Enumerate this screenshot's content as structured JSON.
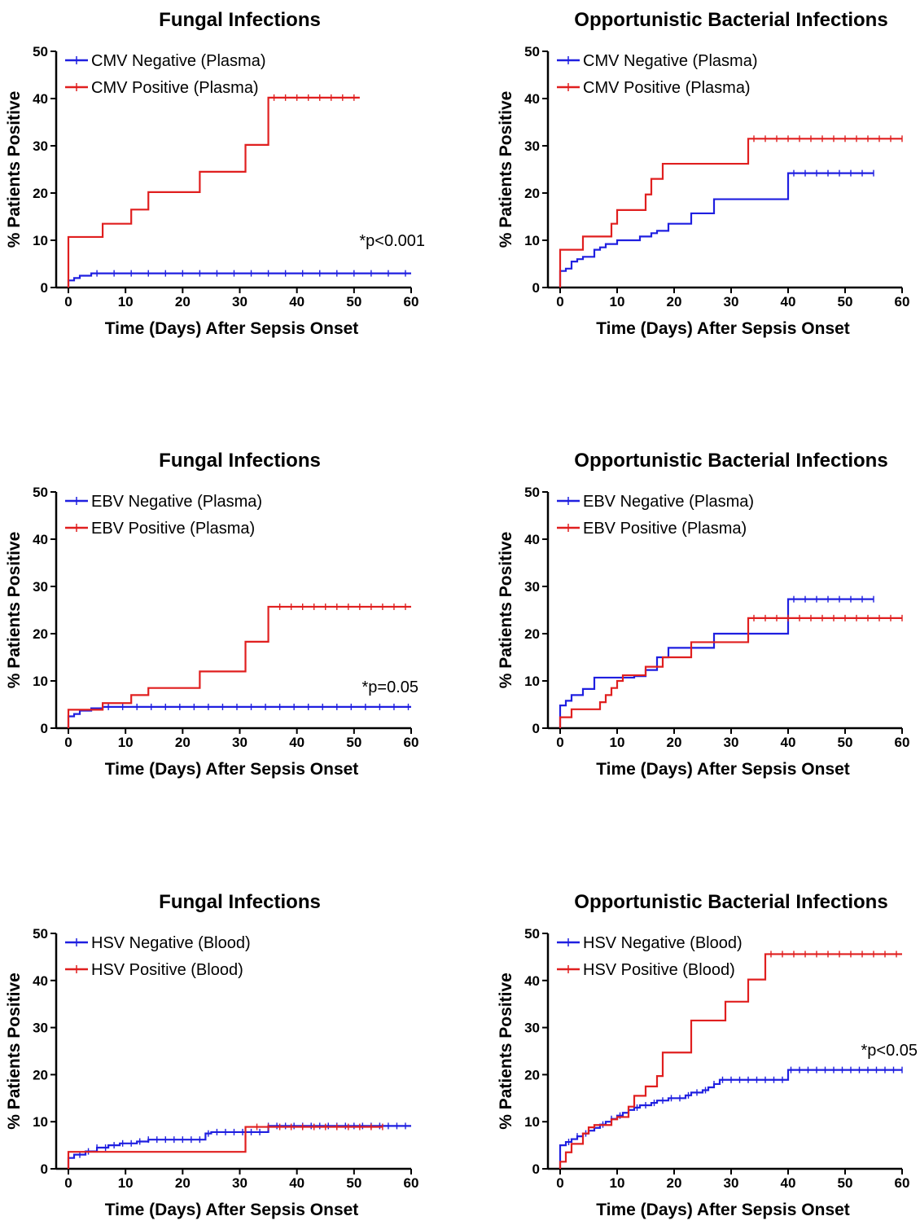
{
  "chart_data": [
    {
      "type": "line",
      "title": "Fungal Infections",
      "xlabel": "Time (Days) After Sepsis Onset",
      "ylabel": "% Patients Positive",
      "xlim": [
        0,
        60
      ],
      "ylim": [
        0,
        50
      ],
      "xticks": [
        0,
        10,
        20,
        30,
        40,
        50,
        60
      ],
      "yticks": [
        0,
        10,
        20,
        30,
        40,
        50
      ],
      "legend_position": "top-left",
      "annotation": "*p<0.001",
      "series": [
        {
          "name": "CMV Negative (Plasma)",
          "color": "#1f1fe0",
          "steps": [
            [
              0,
              1.5
            ],
            [
              1,
              2
            ],
            [
              2,
              2.5
            ],
            [
              4,
              3
            ],
            [
              60,
              3
            ]
          ],
          "censor_start": 5,
          "censor_end": 60,
          "censor_every": 3
        },
        {
          "name": "CMV Positive (Plasma)",
          "color": "#e01f1f",
          "steps": [
            [
              0,
              10.7
            ],
            [
              6,
              13.5
            ],
            [
              11,
              16.5
            ],
            [
              14,
              20.2
            ],
            [
              23,
              24.5
            ],
            [
              31,
              30.2
            ],
            [
              35,
              40.2
            ],
            [
              51,
              40.2
            ]
          ],
          "censor_start": 36,
          "censor_end": 51,
          "censor_every": 2
        }
      ]
    },
    {
      "type": "line",
      "title": "Opportunistic Bacterial Infections",
      "xlabel": "Time (Days) After Sepsis Onset",
      "ylabel": "% Patients Positive",
      "xlim": [
        0,
        60
      ],
      "ylim": [
        0,
        50
      ],
      "xticks": [
        0,
        10,
        20,
        30,
        40,
        50,
        60
      ],
      "yticks": [
        0,
        10,
        20,
        30,
        40,
        50
      ],
      "legend_position": "top-left",
      "series": [
        {
          "name": "CMV Negative (Plasma)",
          "color": "#1f1fe0",
          "steps": [
            [
              0,
              3.5
            ],
            [
              1,
              4
            ],
            [
              2,
              5.5
            ],
            [
              3,
              6
            ],
            [
              4,
              6.5
            ],
            [
              6,
              8
            ],
            [
              7,
              8.5
            ],
            [
              8,
              9.2
            ],
            [
              10,
              10
            ],
            [
              14,
              10.8
            ],
            [
              16,
              11.5
            ],
            [
              17,
              12
            ],
            [
              19,
              13.5
            ],
            [
              23,
              15.7
            ],
            [
              27,
              18.7
            ],
            [
              40,
              24.2
            ],
            [
              55,
              24.2
            ]
          ],
          "censor_start": 41,
          "censor_end": 55,
          "censor_every": 2
        },
        {
          "name": "CMV Positive (Plasma)",
          "color": "#e01f1f",
          "steps": [
            [
              0,
              8
            ],
            [
              4,
              10.8
            ],
            [
              9,
              13.5
            ],
            [
              10,
              16.4
            ],
            [
              15,
              19.7
            ],
            [
              16,
              23
            ],
            [
              18,
              26.2
            ],
            [
              33,
              31.5
            ],
            [
              60,
              31.5
            ]
          ],
          "censor_start": 34,
          "censor_end": 60,
          "censor_every": 2
        }
      ]
    },
    {
      "type": "line",
      "title": "Fungal Infections",
      "xlabel": "Time (Days) After Sepsis Onset",
      "ylabel": "% Patients Positive",
      "xlim": [
        0,
        60
      ],
      "ylim": [
        0,
        50
      ],
      "xticks": [
        0,
        10,
        20,
        30,
        40,
        50,
        60
      ],
      "yticks": [
        0,
        10,
        20,
        30,
        40,
        50
      ],
      "legend_position": "top-left",
      "annotation": "*p=0.05",
      "series": [
        {
          "name": "EBV Negative (Plasma)",
          "color": "#1f1fe0",
          "steps": [
            [
              0,
              2.5
            ],
            [
              1,
              3
            ],
            [
              2,
              3.7
            ],
            [
              4,
              4.2
            ],
            [
              6,
              4.5
            ],
            [
              60,
              4.5
            ]
          ],
          "censor_start": 7,
          "censor_end": 60,
          "censor_every": 2.5
        },
        {
          "name": "EBV Positive (Plasma)",
          "color": "#e01f1f",
          "steps": [
            [
              0,
              3.9
            ],
            [
              6,
              5.3
            ],
            [
              11,
              7
            ],
            [
              14,
              8.5
            ],
            [
              23,
              12
            ],
            [
              31,
              18.3
            ],
            [
              35,
              25.7
            ],
            [
              60,
              25.7
            ]
          ],
          "censor_start": 37,
          "censor_end": 60,
          "censor_every": 2
        }
      ]
    },
    {
      "type": "line",
      "title": "Opportunistic Bacterial Infections",
      "xlabel": "Time (Days) After Sepsis Onset",
      "ylabel": "% Patients Positive",
      "xlim": [
        0,
        60
      ],
      "ylim": [
        0,
        50
      ],
      "xticks": [
        0,
        10,
        20,
        30,
        40,
        50,
        60
      ],
      "yticks": [
        0,
        10,
        20,
        30,
        40,
        50
      ],
      "legend_position": "top-left",
      "series": [
        {
          "name": "EBV Negative (Plasma)",
          "color": "#1f1fe0",
          "steps": [
            [
              0,
              4.8
            ],
            [
              1,
              5.8
            ],
            [
              2,
              7
            ],
            [
              4,
              8.3
            ],
            [
              6,
              10.7
            ],
            [
              13,
              11
            ],
            [
              15,
              12.3
            ],
            [
              17,
              15
            ],
            [
              19,
              17
            ],
            [
              27,
              20
            ],
            [
              40,
              27.3
            ],
            [
              55,
              27.3
            ]
          ],
          "censor_start": 41,
          "censor_end": 55,
          "censor_every": 2
        },
        {
          "name": "EBV Positive (Plasma)",
          "color": "#e01f1f",
          "steps": [
            [
              0,
              2.3
            ],
            [
              2,
              4
            ],
            [
              7,
              5.5
            ],
            [
              8,
              7
            ],
            [
              9,
              8.5
            ],
            [
              10,
              10
            ],
            [
              11,
              11.2
            ],
            [
              15,
              13
            ],
            [
              18,
              15
            ],
            [
              23,
              18.2
            ],
            [
              33,
              23.3
            ],
            [
              60,
              23.3
            ]
          ],
          "censor_start": 34,
          "censor_end": 60,
          "censor_every": 2
        }
      ]
    },
    {
      "type": "line",
      "title": "Fungal Infections",
      "xlabel": "Time (Days) After Sepsis Onset",
      "ylabel": "% Patients Positive",
      "xlim": [
        0,
        60
      ],
      "ylim": [
        0,
        50
      ],
      "xticks": [
        0,
        10,
        20,
        30,
        40,
        50,
        60
      ],
      "yticks": [
        0,
        10,
        20,
        30,
        40,
        50
      ],
      "legend_position": "top-left",
      "series": [
        {
          "name": "HSV Negative (Blood)",
          "color": "#1f1fe0",
          "steps": [
            [
              0,
              2.3
            ],
            [
              1,
              3
            ],
            [
              3,
              3.7
            ],
            [
              5,
              4.5
            ],
            [
              7,
              5
            ],
            [
              9,
              5.4
            ],
            [
              12,
              5.8
            ],
            [
              14,
              6.2
            ],
            [
              24,
              7.5
            ],
            [
              25,
              7.8
            ],
            [
              35,
              9.1
            ],
            [
              60,
              9.1
            ]
          ],
          "censor_start": 2,
          "censor_end": 60,
          "censor_every": 1.5
        },
        {
          "name": "HSV Positive (Blood)",
          "color": "#e01f1f",
          "steps": [
            [
              0,
              3.6
            ],
            [
              31,
              8.9
            ],
            [
              55,
              8.9
            ]
          ],
          "censor_start": 33,
          "censor_end": 55,
          "censor_every": 2
        }
      ]
    },
    {
      "type": "line",
      "title": "Opportunistic Bacterial Infections",
      "xlabel": "Time (Days) After Sepsis Onset",
      "ylabel": "% Patients Positive",
      "xlim": [
        0,
        60
      ],
      "ylim": [
        0,
        50
      ],
      "xticks": [
        0,
        10,
        20,
        30,
        40,
        50,
        60
      ],
      "yticks": [
        0,
        10,
        20,
        30,
        40,
        50
      ],
      "legend_position": "top-left",
      "annotation": "*p<0.05",
      "series": [
        {
          "name": "HSV Negative (Blood)",
          "color": "#1f1fe0",
          "steps": [
            [
              0,
              5
            ],
            [
              1,
              5.7
            ],
            [
              2,
              6.3
            ],
            [
              3,
              6.9
            ],
            [
              4,
              7.5
            ],
            [
              5,
              8.1
            ],
            [
              6,
              8.7
            ],
            [
              7,
              9.4
            ],
            [
              8,
              10
            ],
            [
              9,
              10.6
            ],
            [
              10,
              11.3
            ],
            [
              11,
              11.9
            ],
            [
              12,
              12.5
            ],
            [
              13,
              13
            ],
            [
              14,
              13.5
            ],
            [
              16,
              14
            ],
            [
              17,
              14.5
            ],
            [
              19,
              15
            ],
            [
              22,
              15.6
            ],
            [
              23,
              16.2
            ],
            [
              25,
              16.7
            ],
            [
              26,
              17.3
            ],
            [
              27,
              18
            ],
            [
              28,
              18.9
            ],
            [
              40,
              21
            ],
            [
              60,
              21
            ]
          ],
          "censor_start": 1.5,
          "censor_end": 60,
          "censor_every": 1.5
        },
        {
          "name": "HSV Positive (Blood)",
          "color": "#e01f1f",
          "steps": [
            [
              0,
              1.5
            ],
            [
              1,
              3.5
            ],
            [
              2,
              5.3
            ],
            [
              4,
              7.5
            ],
            [
              5,
              8.8
            ],
            [
              6,
              9.3
            ],
            [
              9,
              10.5
            ],
            [
              10,
              11
            ],
            [
              12,
              13.2
            ],
            [
              13,
              15.5
            ],
            [
              15,
              17.5
            ],
            [
              17,
              19.7
            ],
            [
              18,
              24.7
            ],
            [
              23,
              31.5
            ],
            [
              29,
              35.5
            ],
            [
              33,
              40.2
            ],
            [
              36,
              45.6
            ],
            [
              60,
              45.6
            ]
          ],
          "censor_start": 37,
          "censor_end": 60,
          "censor_every": 2
        }
      ]
    }
  ]
}
